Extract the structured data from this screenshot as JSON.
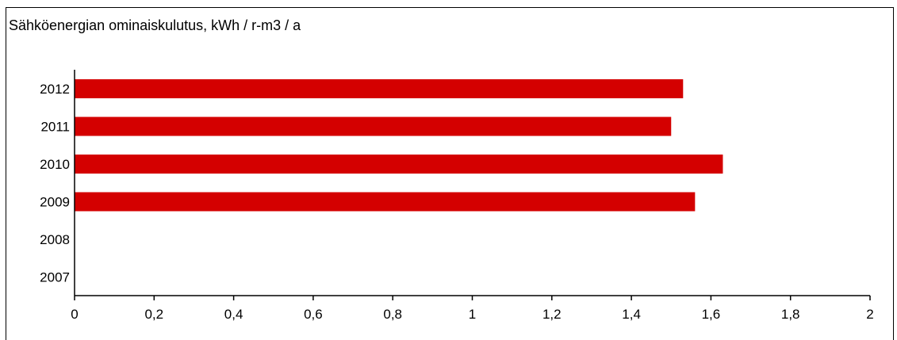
{
  "chart_data": {
    "type": "bar",
    "orientation": "horizontal",
    "title": "Sähköenergian ominaiskulutus, kWh / r-m3 / a",
    "categories": [
      "2012",
      "2011",
      "2010",
      "2009",
      "2008",
      "2007"
    ],
    "values": [
      1.53,
      1.5,
      1.63,
      1.56,
      null,
      null
    ],
    "xlim": [
      0,
      2
    ],
    "xticks": [
      "0",
      "0,2",
      "0,4",
      "0,6",
      "0,8",
      "1",
      "1,2",
      "1,4",
      "1,6",
      "1,8",
      "2"
    ],
    "xlabel": "",
    "ylabel": "",
    "grid": false,
    "bar_color": "#d40000"
  }
}
